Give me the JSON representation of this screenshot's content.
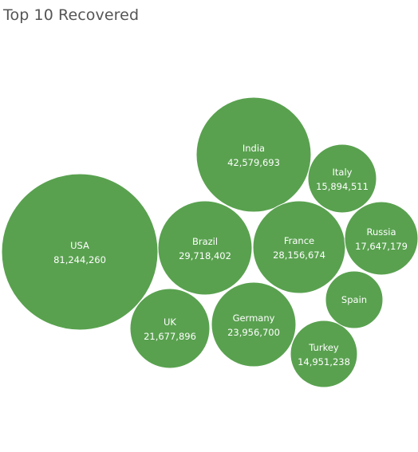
{
  "chart_title": "Top 10 Recovered",
  "bubble_color": "#59a14f",
  "chart_data": {
    "type": "bubble",
    "title": "Top 10 Recovered",
    "categories": [
      "USA",
      "India",
      "Brazil",
      "France",
      "Germany",
      "UK",
      "Russia",
      "Italy",
      "Turkey",
      "Spain"
    ],
    "values": [
      81244260,
      42579693,
      29718402,
      28156674,
      23956700,
      21677896,
      17647179,
      15894511,
      14951238,
      null
    ],
    "value_labels": [
      "81,244,260",
      "42,579,693",
      "29,718,402",
      "28,156,674",
      "23,956,700",
      "21,677,896",
      "17,647,179",
      "15,894,511",
      "14,951,238",
      ""
    ]
  }
}
